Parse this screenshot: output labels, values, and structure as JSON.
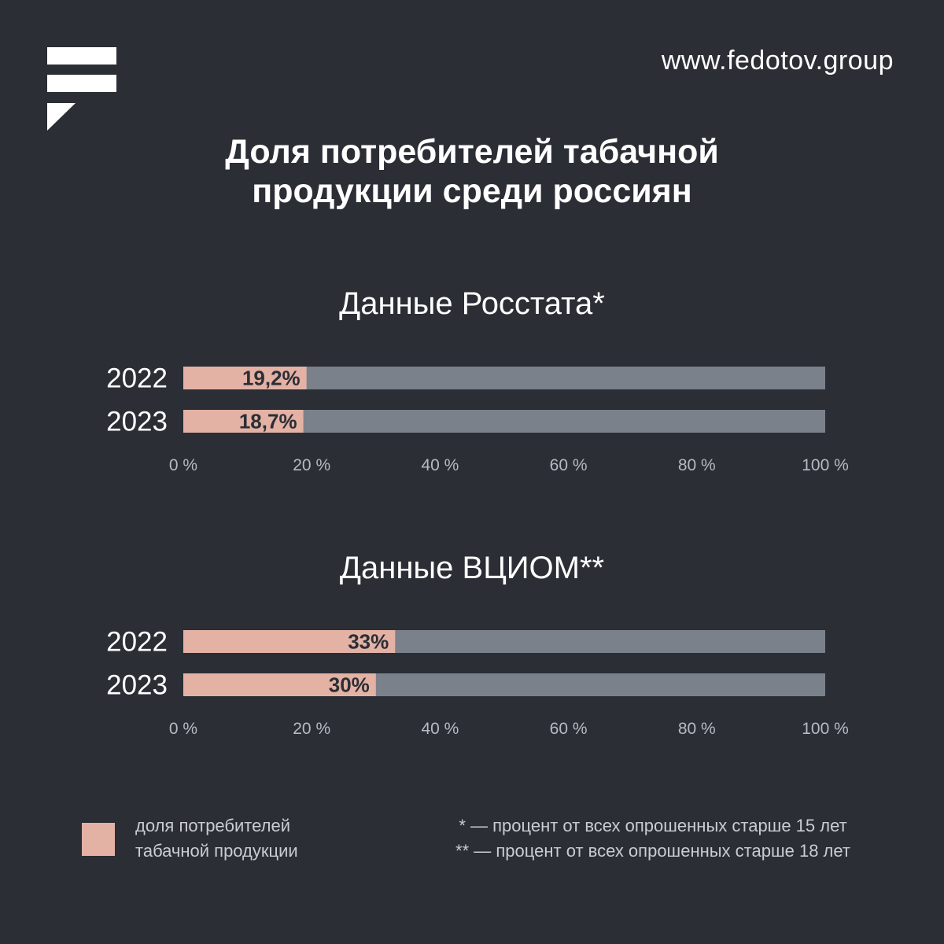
{
  "site": "www.fedotov.group",
  "title_lines": [
    "Доля потребителей табачной",
    "продукции среди россиян"
  ],
  "colors": {
    "background": "#2b2e35",
    "share": "#e3b2a5",
    "remainder": "#7b818b",
    "text": "#ffffff"
  },
  "chart_data": [
    {
      "type": "bar",
      "orientation": "horizontal",
      "stacked": true,
      "title": "Данные Росстата*",
      "categories": [
        "2022",
        "2023"
      ],
      "values": [
        19.2,
        18.7
      ],
      "value_labels": [
        "19,2%",
        "18,7%"
      ],
      "xlim": [
        0,
        100
      ],
      "xticks": [
        "0 %",
        "20 %",
        "40 %",
        "60 %",
        "80 %",
        "100 %"
      ]
    },
    {
      "type": "bar",
      "orientation": "horizontal",
      "stacked": true,
      "title": "Данные ВЦИОМ**",
      "categories": [
        "2022",
        "2023"
      ],
      "values": [
        33,
        30
      ],
      "value_labels": [
        "33%",
        "30%"
      ],
      "xlim": [
        0,
        100
      ],
      "xticks": [
        "0 %",
        "20 %",
        "40 %",
        "60 %",
        "80 %",
        "100 %"
      ]
    }
  ],
  "legend": {
    "label_lines": [
      "доля потребителей",
      "табачной продукции"
    ]
  },
  "footnotes": [
    "* — процент от всех опрошенных старше 15 лет",
    "** — процент от всех опрошенных старше 18 лет"
  ]
}
